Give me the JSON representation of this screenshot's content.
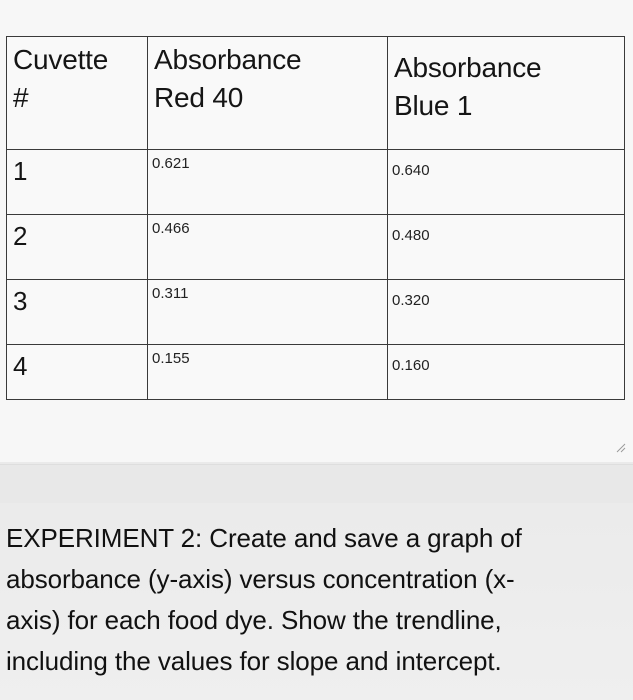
{
  "table": {
    "headers": [
      {
        "line1": "Cuvette",
        "line2": "#"
      },
      {
        "line1": "Absorbance",
        "line2": "Red 40"
      },
      {
        "line1": "Absorbance",
        "line2": "Blue 1"
      }
    ],
    "rows": [
      {
        "cuvette": "1",
        "red40": "0.621",
        "blue1": "0.640"
      },
      {
        "cuvette": "2",
        "red40": "0.466",
        "blue1": "0.480"
      },
      {
        "cuvette": "3",
        "red40": "0.311",
        "blue1": "0.320"
      },
      {
        "cuvette": "4",
        "red40": "0.155",
        "blue1": "0.160"
      }
    ]
  },
  "instructions": {
    "lines": [
      "EXPERIMENT 2: Create and save a graph of",
      "absorbance (y-axis) versus concentration (x-",
      "axis) for each food dye. Show the trendline,",
      "including the values for slope and intercept."
    ]
  },
  "icons": {
    "resize_handle": "resize-grip-icon"
  }
}
